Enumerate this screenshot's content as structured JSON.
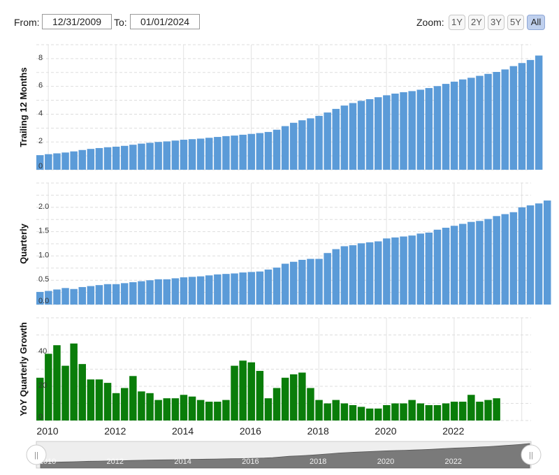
{
  "range": {
    "from_label": "From:",
    "from_value": "12/31/2009",
    "to_label": "To:",
    "to_value": "01/01/2024"
  },
  "zoom": {
    "label": "Zoom:",
    "options": [
      "1Y",
      "2Y",
      "3Y",
      "5Y",
      "All"
    ],
    "selected": "All"
  },
  "colors": {
    "bar_blue": "#5b9bd8",
    "bar_green": "#0a7d0a",
    "grid": "#e3e3e3",
    "navigator_fill": "#7a7a7a",
    "navigator_bg": "#eeeeee"
  },
  "chart_data": [
    {
      "type": "bar",
      "ylabel": "Trailing 12 Months",
      "ylim": [
        0,
        9
      ],
      "yticks": [
        "0",
        "2",
        "4",
        "6",
        "8"
      ],
      "grid": true,
      "x_start": "2010-Q1",
      "values": [
        1.05,
        1.12,
        1.18,
        1.24,
        1.32,
        1.42,
        1.5,
        1.56,
        1.62,
        1.66,
        1.72,
        1.8,
        1.88,
        1.94,
        2.0,
        2.04,
        2.1,
        2.16,
        2.2,
        2.24,
        2.3,
        2.36,
        2.42,
        2.46,
        2.52,
        2.58,
        2.64,
        2.72,
        2.88,
        3.14,
        3.38,
        3.56,
        3.7,
        3.88,
        4.12,
        4.38,
        4.62,
        4.8,
        4.96,
        5.08,
        5.22,
        5.36,
        5.48,
        5.58,
        5.66,
        5.76,
        5.88,
        6.02,
        6.18,
        6.34,
        6.5,
        6.62,
        6.76,
        6.9,
        7.04,
        7.22,
        7.46,
        7.68,
        7.9,
        8.22
      ]
    },
    {
      "type": "bar",
      "ylabel": "Quarterly",
      "ylim": [
        0,
        2.5
      ],
      "yticks": [
        "0.0",
        "0.5",
        "1.0",
        "1.5",
        "2.0"
      ],
      "grid": true,
      "x_start": "2010-Q1",
      "values": [
        0.26,
        0.28,
        0.31,
        0.34,
        0.32,
        0.36,
        0.38,
        0.4,
        0.42,
        0.42,
        0.44,
        0.46,
        0.48,
        0.5,
        0.52,
        0.52,
        0.54,
        0.56,
        0.57,
        0.58,
        0.6,
        0.62,
        0.63,
        0.64,
        0.66,
        0.67,
        0.68,
        0.72,
        0.76,
        0.84,
        0.88,
        0.92,
        0.94,
        0.94,
        1.06,
        1.14,
        1.2,
        1.22,
        1.26,
        1.28,
        1.3,
        1.36,
        1.38,
        1.4,
        1.42,
        1.46,
        1.48,
        1.54,
        1.58,
        1.62,
        1.66,
        1.7,
        1.72,
        1.76,
        1.82,
        1.86,
        1.9,
        2.0,
        2.04,
        2.08,
        2.14
      ]
    },
    {
      "type": "bar",
      "ylabel": "YoY Quarterly Growth",
      "ylim": [
        0,
        60
      ],
      "yticks": [
        "0",
        "20",
        "40"
      ],
      "grid": true,
      "x_start": "2010-Q1",
      "values": [
        25,
        39,
        44,
        32,
        45,
        33,
        24,
        24,
        22,
        16,
        19,
        26,
        17,
        16,
        12,
        13,
        13,
        15,
        14,
        12,
        11,
        11,
        12,
        32,
        35,
        34,
        29,
        13,
        19,
        25,
        27,
        28,
        19,
        12,
        10,
        12,
        10,
        9,
        8,
        7,
        7,
        9,
        10,
        10,
        12,
        10,
        9,
        9,
        10,
        11,
        11,
        15,
        11,
        12,
        13
      ]
    }
  ],
  "xaxis": {
    "labels": [
      "2010",
      "2012",
      "2014",
      "2016",
      "2018",
      "2020",
      "2022"
    ]
  },
  "navigator": {
    "labels": [
      "2010",
      "2012",
      "2014",
      "2016",
      "2018",
      "2020",
      "2022"
    ],
    "left_handle_glyph": "||",
    "right_handle_glyph": "||"
  }
}
